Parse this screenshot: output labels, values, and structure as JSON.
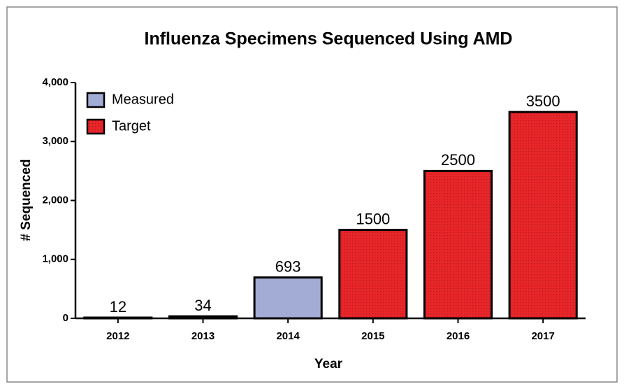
{
  "chart_data": {
    "type": "bar",
    "title": "Influenza  Specimens Sequenced Using AMD",
    "xlabel": "Year",
    "ylabel": "# Sequenced",
    "categories": [
      "2012",
      "2013",
      "2014",
      "2015",
      "2016",
      "2017"
    ],
    "series": [
      {
        "name": "Measured",
        "color": "#a3acd4",
        "values": [
          12,
          34,
          693,
          null,
          null,
          null
        ]
      },
      {
        "name": "Target",
        "color": "#e8262a",
        "values": [
          null,
          null,
          null,
          1500,
          2500,
          3500
        ]
      }
    ],
    "ylim": [
      0,
      4000
    ],
    "yticks": [
      0,
      {
        "value": 1000,
        "label": "1,000"
      },
      {
        "value": 2000,
        "label": "2,000"
      },
      {
        "value": 3000,
        "label": "3,000"
      },
      {
        "value": 4000,
        "label": "4,000"
      }
    ],
    "legend": "upper left",
    "grid": false
  }
}
